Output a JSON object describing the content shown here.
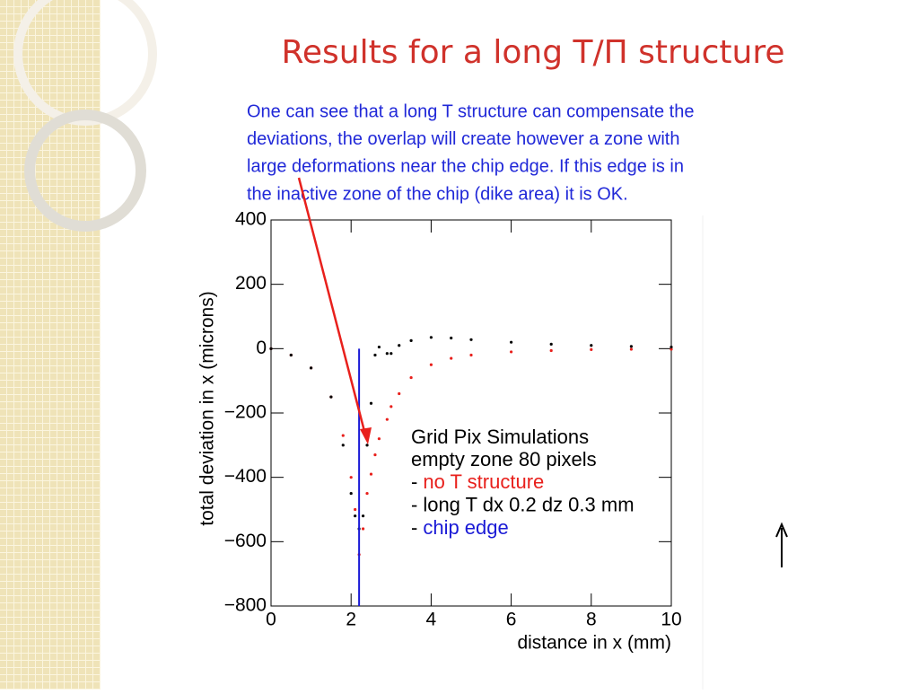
{
  "slide": {
    "title": "Results for a long T/Π structure",
    "body_lines": [
      "One can see that a long T structure can compensate the",
      "deviations, the overlap will create however a zone with",
      "large deformations near the chip edge. If this edge is in",
      "the inactive zone of the chip (dike area) it is OK."
    ]
  },
  "chart_data": {
    "type": "scatter",
    "x_label": "distance in x (mm)",
    "y_label": "total deviation in x (microns)",
    "annotations": [
      "Grid Pix Simulations",
      "empty zone 80 pixels"
    ],
    "legend_marker": "-",
    "x": [
      0,
      0.5,
      1,
      1.5,
      1.8,
      2.0,
      2.1,
      2.2,
      2.3,
      2.4,
      2.5,
      2.6,
      2.7,
      2.9,
      3.0,
      3.2,
      3.5,
      4,
      4.5,
      5,
      6,
      7,
      8,
      9,
      10
    ],
    "series": [
      {
        "name": "no T structure",
        "color": "#e8201c",
        "values": [
          0,
          -20,
          -60,
          -150,
          -270,
          -400,
          -500,
          -640,
          -560,
          -450,
          -390,
          -330,
          -280,
          -220,
          -180,
          -140,
          -90,
          -50,
          -30,
          -20,
          -10,
          -6,
          -3,
          -2,
          -2
        ]
      },
      {
        "name": "long T dx 0.2 dz 0.3 mm",
        "color": "#000000",
        "values": [
          0,
          -20,
          -60,
          -150,
          -300,
          -450,
          -520,
          -560,
          -520,
          -300,
          -170,
          -20,
          5,
          -15,
          -15,
          10,
          25,
          35,
          33,
          28,
          20,
          14,
          10,
          7,
          5
        ]
      }
    ],
    "vlines": [
      {
        "name": "chip edge",
        "color": "#1a1ad6",
        "x": 2.2,
        "y": [
          -800,
          0
        ]
      }
    ],
    "xlim": [
      0,
      10
    ],
    "ylim": [
      -800,
      400
    ],
    "xticks": [
      0,
      2,
      4,
      6,
      8,
      10
    ],
    "yticks": [
      {
        "value": -800,
        "label": "−800"
      },
      {
        "value": -600,
        "label": "−600"
      },
      {
        "value": -400,
        "label": "−400"
      },
      {
        "value": -200,
        "label": "−200"
      },
      0,
      200,
      400
    ]
  }
}
